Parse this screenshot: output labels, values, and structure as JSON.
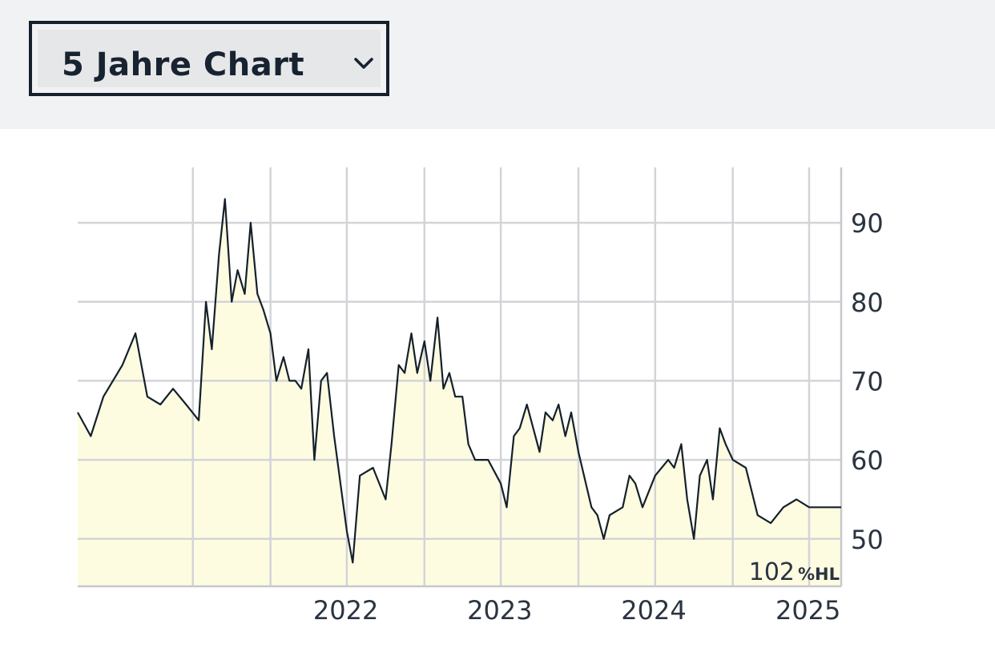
{
  "dropdown": {
    "label": "5 Jahre Chart",
    "icon": "chevron-down-icon"
  },
  "chart_data": {
    "type": "area",
    "title": "",
    "xlabel": "",
    "ylabel": "",
    "x_ticks": [
      "2022",
      "2023",
      "2024",
      "2025"
    ],
    "y_ticks": [
      "50",
      "60",
      "70",
      "80",
      "90"
    ],
    "xlim": [
      "2020-10-01",
      "2025-09-15"
    ],
    "ylim": [
      44,
      97
    ],
    "grid": true,
    "y_axis_position": "right",
    "line_color": "#14202c",
    "fill_color": "#fefce0",
    "annotation": {
      "value": "102",
      "unit": "%HL"
    },
    "series": [
      {
        "x": [
          "2020-10-01",
          "2020-11-01",
          "2020-12-01",
          "2021-01-15",
          "2021-02-15",
          "2021-03-15",
          "2021-04-15",
          "2021-05-15",
          "2021-06-15",
          "2021-07-15",
          "2021-08-01",
          "2021-08-15",
          "2021-09-01",
          "2021-09-15",
          "2021-10-01",
          "2021-10-15",
          "2021-11-01",
          "2021-11-15",
          "2021-12-01",
          "2021-12-15",
          "2022-01-01",
          "2022-01-15",
          "2022-02-01",
          "2022-02-15",
          "2022-03-01",
          "2022-03-15",
          "2022-04-01",
          "2022-04-15",
          "2022-05-01",
          "2022-05-15",
          "2022-06-01",
          "2022-07-01",
          "2022-07-15",
          "2022-08-01",
          "2022-09-01",
          "2022-10-01",
          "2022-10-15",
          "2022-11-01",
          "2022-11-15",
          "2022-12-01",
          "2022-12-15",
          "2023-01-01",
          "2023-01-15",
          "2023-02-01",
          "2023-02-15",
          "2023-03-01",
          "2023-03-15",
          "2023-04-01",
          "2023-04-15",
          "2023-05-01",
          "2023-06-01",
          "2023-07-01",
          "2023-07-15",
          "2023-08-01",
          "2023-08-15",
          "2023-09-01",
          "2023-10-01",
          "2023-10-15",
          "2023-11-01",
          "2023-11-15",
          "2023-12-01",
          "2023-12-15",
          "2024-01-01",
          "2024-02-01",
          "2024-02-15",
          "2024-03-01",
          "2024-03-15",
          "2024-04-15",
          "2024-05-01",
          "2024-05-15",
          "2024-06-01",
          "2024-07-01",
          "2024-08-01",
          "2024-08-15",
          "2024-09-01",
          "2024-09-15",
          "2024-10-01",
          "2024-10-15",
          "2024-11-01",
          "2024-11-15",
          "2024-12-01",
          "2024-12-15",
          "2025-01-01",
          "2025-02-01",
          "2025-02-15",
          "2025-03-01",
          "2025-04-01",
          "2025-05-01",
          "2025-06-01",
          "2025-07-01",
          "2025-07-15",
          "2025-08-01",
          "2025-09-01",
          "2025-09-15"
        ],
        "values": [
          66,
          63,
          68,
          72,
          76,
          68,
          67,
          69,
          67,
          65,
          80,
          74,
          86,
          93,
          80,
          84,
          81,
          90,
          81,
          79,
          76,
          70,
          73,
          70,
          70,
          69,
          74,
          60,
          70,
          71,
          63,
          51,
          47,
          58,
          59,
          55,
          62,
          72,
          71,
          76,
          71,
          75,
          70,
          78,
          69,
          71,
          68,
          68,
          62,
          60,
          60,
          57,
          54,
          63,
          64,
          67,
          61,
          66,
          65,
          67,
          63,
          66,
          61,
          54,
          53,
          50,
          53,
          54,
          58,
          57,
          54,
          58,
          60,
          59,
          62,
          55,
          50,
          58,
          60,
          55,
          64,
          62,
          60,
          59,
          56,
          53,
          52,
          54,
          55,
          54,
          54,
          54,
          54,
          54
        ]
      }
    ]
  }
}
